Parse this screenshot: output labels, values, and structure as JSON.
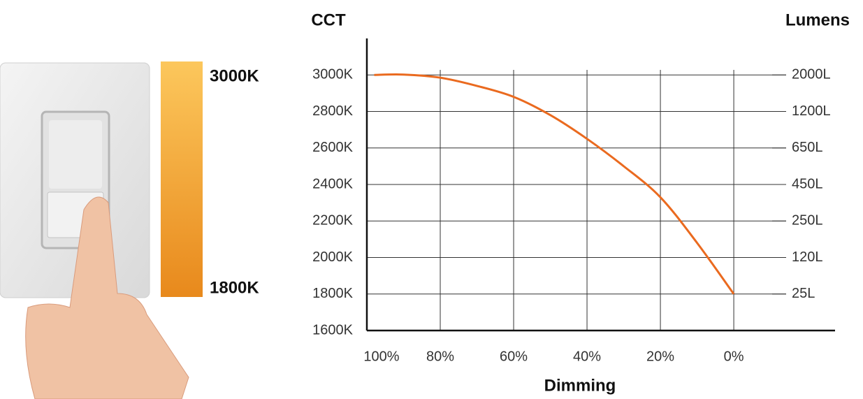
{
  "chart_data": {
    "type": "line",
    "y_label": "CCT",
    "y2_label": "Lumens",
    "x_label": "Dimming",
    "scale_top_label": "3000K",
    "scale_bottom_label": "1800K",
    "xlim": [
      100,
      -27.6
    ],
    "xticks": [
      {
        "value": 100,
        "label": "100%"
      },
      {
        "value": 80,
        "label": "80%"
      },
      {
        "value": 60,
        "label": "60%"
      },
      {
        "value": 40,
        "label": "40%"
      },
      {
        "value": 20,
        "label": "20%"
      },
      {
        "value": 0,
        "label": "0%"
      }
    ],
    "ylim": [
      1600,
      3200
    ],
    "yticks": [
      {
        "value": 1600,
        "label": "1600K"
      },
      {
        "value": 1800,
        "label": "1800K"
      },
      {
        "value": 2000,
        "label": "2000K"
      },
      {
        "value": 2200,
        "label": "2200K"
      },
      {
        "value": 2400,
        "label": "2400K"
      },
      {
        "value": 2600,
        "label": "2600K"
      },
      {
        "value": 2800,
        "label": "2800K"
      },
      {
        "value": 3000,
        "label": "3000K"
      }
    ],
    "y2lim": [
      1600,
      3200
    ],
    "y2ticks": [
      {
        "value": 1800,
        "label": "25L"
      },
      {
        "value": 2000,
        "label": "120L"
      },
      {
        "value": 2200,
        "label": "250L"
      },
      {
        "value": 2400,
        "label": "450L"
      },
      {
        "value": 2600,
        "label": "650L"
      },
      {
        "value": 2800,
        "label": "1200L"
      },
      {
        "value": 3000,
        "label": "2000L"
      }
    ],
    "grid": true,
    "series": [
      {
        "color": "#ea6a1f",
        "x": [
          98,
          90,
          80,
          70,
          60,
          50,
          40,
          30,
          20,
          10,
          0
        ],
        "values": [
          3000,
          3002,
          2985,
          2940,
          2880,
          2780,
          2650,
          2500,
          2330,
          2080,
          1800
        ]
      }
    ]
  }
}
